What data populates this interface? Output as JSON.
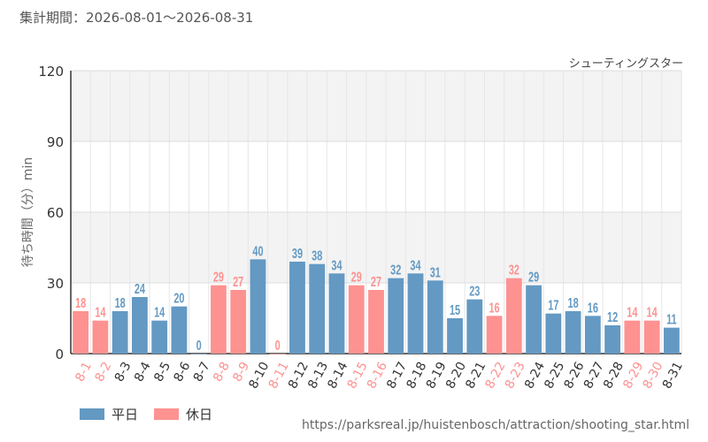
{
  "header": {
    "period_label": "集計期間：2026-08-01～2026-08-31",
    "attraction_name": "シューティングスター"
  },
  "source_url": "https://parksreal.jp/huistenbosch/attraction/shooting_star.html",
  "chart_data": {
    "type": "bar",
    "title": "",
    "xlabel": "",
    "ylabel": "待ち時間（分）min",
    "ylim": [
      0,
      120
    ],
    "yticks": [
      0,
      30,
      60,
      90,
      120
    ],
    "grid": true,
    "legend_position": "bottom-left",
    "legend": [
      {
        "label": "平日",
        "color": "#6399c3"
      },
      {
        "label": "休日",
        "color": "#fd9291"
      }
    ],
    "colors": {
      "weekday": "#6399c3",
      "holiday": "#fd9291"
    },
    "categories": [
      "8-1",
      "8-2",
      "8-3",
      "8-4",
      "8-5",
      "8-6",
      "8-7",
      "8-8",
      "8-9",
      "8-10",
      "8-11",
      "8-12",
      "8-13",
      "8-14",
      "8-15",
      "8-16",
      "8-17",
      "8-18",
      "8-19",
      "8-20",
      "8-21",
      "8-22",
      "8-23",
      "8-24",
      "8-25",
      "8-26",
      "8-27",
      "8-28",
      "8-29",
      "8-30",
      "8-31"
    ],
    "values": [
      18,
      14,
      18,
      24,
      14,
      20,
      0,
      29,
      27,
      40,
      0,
      39,
      38,
      34,
      29,
      27,
      32,
      34,
      31,
      15,
      23,
      16,
      32,
      29,
      17,
      18,
      16,
      12,
      14,
      14,
      11
    ],
    "day_type": [
      "holiday",
      "holiday",
      "weekday",
      "weekday",
      "weekday",
      "weekday",
      "weekday",
      "holiday",
      "holiday",
      "weekday",
      "holiday",
      "weekday",
      "weekday",
      "weekday",
      "holiday",
      "holiday",
      "weekday",
      "weekday",
      "weekday",
      "weekday",
      "weekday",
      "holiday",
      "holiday",
      "weekday",
      "weekday",
      "weekday",
      "weekday",
      "weekday",
      "holiday",
      "holiday",
      "weekday"
    ]
  }
}
